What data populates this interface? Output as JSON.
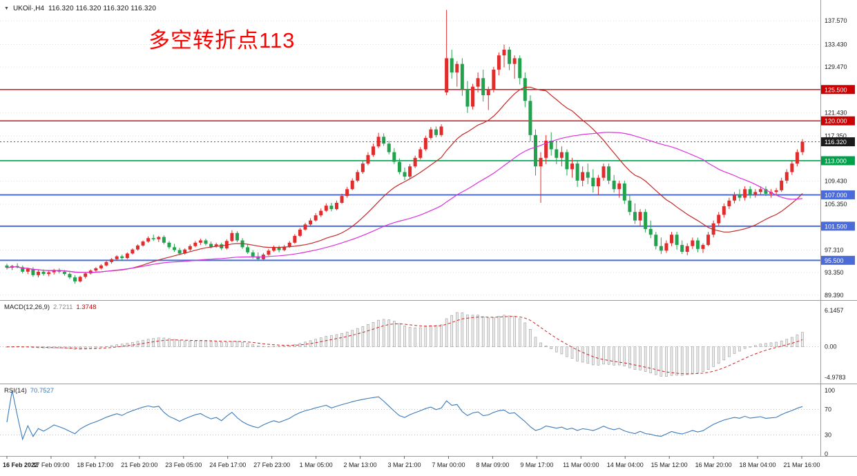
{
  "header": {
    "collapse_icon": "▼",
    "symbol_period": "UKOil·,H4",
    "ohlc": "116.320 116.320 116.320 116.320"
  },
  "annotation": {
    "text": "多空转折点113",
    "color": "#ff0000"
  },
  "indicators": {
    "macd": {
      "name": "MACD(12,26,9)",
      "value_main": "2.7211",
      "value_signal": "1.3748",
      "scale_labels": [
        "6.1457",
        "0.00",
        "-4.9783"
      ]
    },
    "rsi": {
      "name": "RSI(14)",
      "value": "70.7527",
      "scale_labels": [
        "100",
        "70",
        "30",
        "0"
      ],
      "levels": [
        70,
        30
      ]
    }
  },
  "colors": {
    "bull": "#e12c2c",
    "bear": "#22a24c",
    "ma_fast": "#c62828",
    "ma_slow": "#dd2fdd",
    "macd_hist_fill": "#ececec",
    "macd_hist_stroke": "#9a9a9a",
    "macd_signal": "#cc2222",
    "rsi_line": "#3979b8",
    "grid": "#c8c8c8",
    "axis_text": "#1a1a1a",
    "time_text": "#1a1a1a",
    "border": "#9a9a9a",
    "current_badge_bg": "#1b1b1b"
  },
  "price_axis": {
    "plain_labels": [
      {
        "price": 137.57,
        "text": "137.570"
      },
      {
        "price": 133.43,
        "text": "133.430"
      },
      {
        "price": 129.47,
        "text": "129.470"
      },
      {
        "price": 121.43,
        "text": "121.430"
      },
      {
        "price": 117.35,
        "text": "117.350"
      },
      {
        "price": 109.43,
        "text": "109.430"
      },
      {
        "price": 105.35,
        "text": "105.350"
      },
      {
        "price": 97.31,
        "text": "97.310"
      },
      {
        "price": 93.35,
        "text": "93.350"
      },
      {
        "price": 89.39,
        "text": "89.390"
      }
    ],
    "current": {
      "price": 116.32,
      "text": "116.320"
    }
  },
  "chart_data": {
    "type": "candlestick",
    "symbol": "UKOil",
    "timeframe": "H4",
    "title": "UKOil,H4",
    "y_range": [
      89.0,
      140.5
    ],
    "current_price": 116.32,
    "levels": [
      {
        "price": 125.5,
        "text": "125.500",
        "color": "#cc0000",
        "width": 1.4
      },
      {
        "price": 120.0,
        "text": "120.000",
        "color": "#cc0000",
        "width": 1.4
      },
      {
        "price": 113.0,
        "text": "113.000",
        "color": "#00a14b",
        "width": 1.6
      },
      {
        "price": 107.0,
        "text": "107.000",
        "color": "#4a6bd8",
        "width": 2
      },
      {
        "price": 101.5,
        "text": "101.500",
        "color": "#4a6bd8",
        "width": 2
      },
      {
        "price": 95.5,
        "text": "95.500",
        "color": "#4a6bd8",
        "width": 2
      }
    ],
    "ma": [
      {
        "period": 20,
        "color": "#c62828"
      },
      {
        "period": 50,
        "color": "#dd2fdd"
      }
    ],
    "macd_params": [
      12,
      26,
      9
    ],
    "rsi_params": [
      14
    ],
    "time_labels": [
      "16 Feb 2022",
      "17 Feb 09:00",
      "18 Feb 17:00",
      "21 Feb 20:00",
      "23 Feb 05:00",
      "24 Feb 17:00",
      "27 Feb 23:00",
      "1 Mar 05:00",
      "2 Mar 13:00",
      "3 Mar 21:00",
      "7 Mar 00:00",
      "8 Mar 09:00",
      "9 Mar 17:00",
      "11 Mar 00:00",
      "14 Mar 04:00",
      "15 Mar 12:00",
      "16 Mar 20:00",
      "18 Mar 04:00",
      "21 Mar 16:00"
    ],
    "candles": [
      [
        94.6,
        94.9,
        93.9,
        94.2
      ],
      [
        94.2,
        94.7,
        93.8,
        94.5
      ],
      [
        94.5,
        95.0,
        94.1,
        94.3
      ],
      [
        94.3,
        94.6,
        93.2,
        93.5
      ],
      [
        93.5,
        94.2,
        93.1,
        94.0
      ],
      [
        94.0,
        94.3,
        92.6,
        92.9
      ],
      [
        92.9,
        93.8,
        92.5,
        93.5
      ],
      [
        93.5,
        93.9,
        92.8,
        93.1
      ],
      [
        93.1,
        93.6,
        92.7,
        93.4
      ],
      [
        93.4,
        94.0,
        93.0,
        93.8
      ],
      [
        93.8,
        94.1,
        93.2,
        93.5
      ],
      [
        93.5,
        93.8,
        92.8,
        93.1
      ],
      [
        93.1,
        93.4,
        92.2,
        92.5
      ],
      [
        92.5,
        92.9,
        91.4,
        91.8
      ],
      [
        91.8,
        92.8,
        91.6,
        92.6
      ],
      [
        92.6,
        93.4,
        92.3,
        93.2
      ],
      [
        93.2,
        93.9,
        93.0,
        93.7
      ],
      [
        93.7,
        94.3,
        93.4,
        94.1
      ],
      [
        94.1,
        94.8,
        93.9,
        94.6
      ],
      [
        94.6,
        95.4,
        94.4,
        95.2
      ],
      [
        95.2,
        95.9,
        94.9,
        95.7
      ],
      [
        95.7,
        96.4,
        95.4,
        96.2
      ],
      [
        96.2,
        96.5,
        95.5,
        95.9
      ],
      [
        95.9,
        96.9,
        95.7,
        96.7
      ],
      [
        96.7,
        97.6,
        96.5,
        97.4
      ],
      [
        97.4,
        98.3,
        97.2,
        98.1
      ],
      [
        98.1,
        99.0,
        97.9,
        98.8
      ],
      [
        98.8,
        99.7,
        98.6,
        99.4
      ],
      [
        99.4,
        100.0,
        98.9,
        99.2
      ],
      [
        99.2,
        99.8,
        98.7,
        99.6
      ],
      [
        99.6,
        99.9,
        98.3,
        98.6
      ],
      [
        98.6,
        98.9,
        97.5,
        97.8
      ],
      [
        97.8,
        98.4,
        97.0,
        97.3
      ],
      [
        97.3,
        97.7,
        96.4,
        96.7
      ],
      [
        96.7,
        97.6,
        96.5,
        97.4
      ],
      [
        97.4,
        98.3,
        97.1,
        98.0
      ],
      [
        98.0,
        98.9,
        97.8,
        98.6
      ],
      [
        98.6,
        99.3,
        98.2,
        99.0
      ],
      [
        99.0,
        99.3,
        98.1,
        98.4
      ],
      [
        98.4,
        98.8,
        97.6,
        97.9
      ],
      [
        97.9,
        98.6,
        97.7,
        98.3
      ],
      [
        98.3,
        98.6,
        97.3,
        97.6
      ],
      [
        97.6,
        99.2,
        97.4,
        98.9
      ],
      [
        98.9,
        100.8,
        98.7,
        100.3
      ],
      [
        100.3,
        100.6,
        98.7,
        99.0
      ],
      [
        99.0,
        99.4,
        97.5,
        97.8
      ],
      [
        97.8,
        98.3,
        96.6,
        96.9
      ],
      [
        96.9,
        97.3,
        95.8,
        96.2
      ],
      [
        96.2,
        96.9,
        95.4,
        95.7
      ],
      [
        95.7,
        96.8,
        95.5,
        96.5
      ],
      [
        96.5,
        97.5,
        96.3,
        97.2
      ],
      [
        97.2,
        98.1,
        97.0,
        97.8
      ],
      [
        97.8,
        98.1,
        96.9,
        97.3
      ],
      [
        97.3,
        98.2,
        97.1,
        97.9
      ],
      [
        97.9,
        98.9,
        97.7,
        98.6
      ],
      [
        98.6,
        100.1,
        98.4,
        99.8
      ],
      [
        99.8,
        101.2,
        99.6,
        100.9
      ],
      [
        100.9,
        102.1,
        100.7,
        101.8
      ],
      [
        101.8,
        102.9,
        101.4,
        102.5
      ],
      [
        102.5,
        103.8,
        102.3,
        103.4
      ],
      [
        103.4,
        104.6,
        103.1,
        104.2
      ],
      [
        104.2,
        105.5,
        104.0,
        105.1
      ],
      [
        105.1,
        105.6,
        104.1,
        104.5
      ],
      [
        104.5,
        106.0,
        104.3,
        105.6
      ],
      [
        105.6,
        107.2,
        105.4,
        106.8
      ],
      [
        106.8,
        108.4,
        106.5,
        108.0
      ],
      [
        108.0,
        109.9,
        107.8,
        109.5
      ],
      [
        109.5,
        111.4,
        109.2,
        111.0
      ],
      [
        111.0,
        112.9,
        110.7,
        112.5
      ],
      [
        112.5,
        114.5,
        112.2,
        114.0
      ],
      [
        114.0,
        116.0,
        113.7,
        115.5
      ],
      [
        115.5,
        117.9,
        115.2,
        117.2
      ],
      [
        117.2,
        117.8,
        115.6,
        116.0
      ],
      [
        116.0,
        116.5,
        114.1,
        114.5
      ],
      [
        114.5,
        115.2,
        112.4,
        112.8
      ],
      [
        112.8,
        113.4,
        110.6,
        111.0
      ],
      [
        111.0,
        111.8,
        109.6,
        110.2
      ],
      [
        110.2,
        112.4,
        109.9,
        112.0
      ],
      [
        112.0,
        113.9,
        111.7,
        113.5
      ],
      [
        113.5,
        115.4,
        113.2,
        115.0
      ],
      [
        115.0,
        117.4,
        114.7,
        117.0
      ],
      [
        117.0,
        118.9,
        116.7,
        118.5
      ],
      [
        118.5,
        119.0,
        117.1,
        117.5
      ],
      [
        117.5,
        119.4,
        117.2,
        119.0
      ],
      [
        125.0,
        139.5,
        124.5,
        131.0
      ],
      [
        131.0,
        132.5,
        127.4,
        128.5
      ],
      [
        128.5,
        130.5,
        126.0,
        130.0
      ],
      [
        130.0,
        131.0,
        124.4,
        125.5
      ],
      [
        125.5,
        127.0,
        121.4,
        122.5
      ],
      [
        122.5,
        126.5,
        122.0,
        126.0
      ],
      [
        126.0,
        128.5,
        125.0,
        127.5
      ],
      [
        127.5,
        129.0,
        123.4,
        124.5
      ],
      [
        124.5,
        126.0,
        121.9,
        125.5
      ],
      [
        125.5,
        129.5,
        125.0,
        129.0
      ],
      [
        129.0,
        132.0,
        128.0,
        131.5
      ],
      [
        131.5,
        133.4,
        129.4,
        132.5
      ],
      [
        132.5,
        133.0,
        128.9,
        130.0
      ],
      [
        130.0,
        131.5,
        127.4,
        131.0
      ],
      [
        131.0,
        131.5,
        126.4,
        127.5
      ],
      [
        127.5,
        128.5,
        122.4,
        123.5
      ],
      [
        123.5,
        124.5,
        116.4,
        117.5
      ],
      [
        117.5,
        118.5,
        110.4,
        112.0
      ],
      [
        112.0,
        114.5,
        105.6,
        113.5
      ],
      [
        113.5,
        117.5,
        112.4,
        116.5
      ],
      [
        116.5,
        118.0,
        113.9,
        115.0
      ],
      [
        115.0,
        116.5,
        112.4,
        113.5
      ],
      [
        113.5,
        115.5,
        112.0,
        114.5
      ],
      [
        114.5,
        115.0,
        110.4,
        111.5
      ],
      [
        111.5,
        113.5,
        110.0,
        112.5
      ],
      [
        112.5,
        113.0,
        108.4,
        109.5
      ],
      [
        109.5,
        112.0,
        108.5,
        111.0
      ],
      [
        111.0,
        112.5,
        108.9,
        110.0
      ],
      [
        110.0,
        111.5,
        107.4,
        108.5
      ],
      [
        108.5,
        110.5,
        107.0,
        110.0
      ],
      [
        110.0,
        112.5,
        109.5,
        112.0
      ],
      [
        112.0,
        112.5,
        108.9,
        109.5
      ],
      [
        109.5,
        110.5,
        107.4,
        108.0
      ],
      [
        108.0,
        109.5,
        106.5,
        109.0
      ],
      [
        109.0,
        109.5,
        105.4,
        106.0
      ],
      [
        106.0,
        107.0,
        103.4,
        104.0
      ],
      [
        104.0,
        105.5,
        101.9,
        102.5
      ],
      [
        102.5,
        104.5,
        101.5,
        104.0
      ],
      [
        104.0,
        104.5,
        100.4,
        101.0
      ],
      [
        101.0,
        102.5,
        99.4,
        100.0
      ],
      [
        100.0,
        100.5,
        97.4,
        98.0
      ],
      [
        98.0,
        99.5,
        96.6,
        97.2
      ],
      [
        97.2,
        99.0,
        96.8,
        98.5
      ],
      [
        98.5,
        100.5,
        98.0,
        100.0
      ],
      [
        100.0,
        100.5,
        97.4,
        98.2
      ],
      [
        98.2,
        99.0,
        96.6,
        97.0
      ],
      [
        97.0,
        98.5,
        96.4,
        98.0
      ],
      [
        98.0,
        99.5,
        97.5,
        99.0
      ],
      [
        99.0,
        99.5,
        96.9,
        97.5
      ],
      [
        97.5,
        98.5,
        96.8,
        98.2
      ],
      [
        98.2,
        100.5,
        98.0,
        100.0
      ],
      [
        100.0,
        102.5,
        99.5,
        102.0
      ],
      [
        102.0,
        104.0,
        101.5,
        103.5
      ],
      [
        103.5,
        105.5,
        103.0,
        105.0
      ],
      [
        105.0,
        106.5,
        104.5,
        106.0
      ],
      [
        106.0,
        107.5,
        105.5,
        107.0
      ],
      [
        107.0,
        108.0,
        105.9,
        106.5
      ],
      [
        106.5,
        108.5,
        106.0,
        108.0
      ],
      [
        108.0,
        108.5,
        106.4,
        107.0
      ],
      [
        107.0,
        108.0,
        106.5,
        107.5
      ],
      [
        107.5,
        108.5,
        107.0,
        108.0
      ],
      [
        108.0,
        108.5,
        106.8,
        107.2
      ],
      [
        107.2,
        108.0,
        106.5,
        107.5
      ],
      [
        107.5,
        108.2,
        106.9,
        107.8
      ],
      [
        107.8,
        110.0,
        107.5,
        109.5
      ],
      [
        109.5,
        111.5,
        109.0,
        111.0
      ],
      [
        111.0,
        113.0,
        110.5,
        112.5
      ],
      [
        112.5,
        115.0,
        112.0,
        114.5
      ],
      [
        114.5,
        116.8,
        114.0,
        116.32
      ]
    ]
  }
}
